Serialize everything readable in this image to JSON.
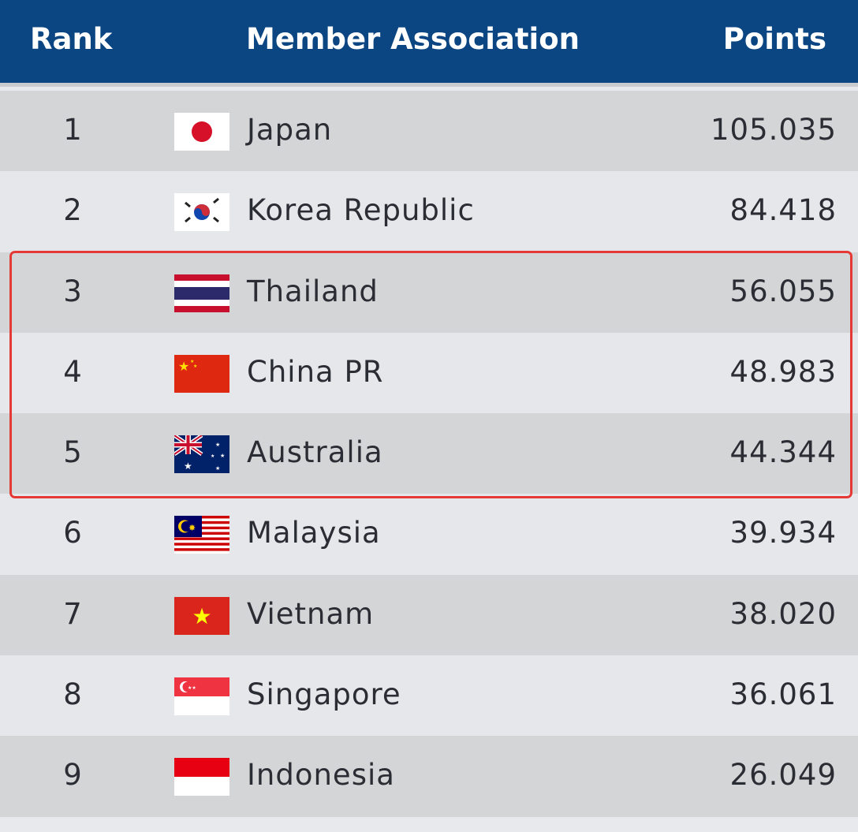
{
  "header": {
    "rank": "Rank",
    "association": "Member Association",
    "points": "Points"
  },
  "colors": {
    "header": "#0b4683",
    "highlight": "#e53935"
  },
  "highlighted_ranks": [
    3,
    4,
    5
  ],
  "rows": [
    {
      "rank": "1",
      "name": "Japan",
      "points": "105.035",
      "flag": "japan-flag-icon"
    },
    {
      "rank": "2",
      "name": "Korea Republic",
      "points": "84.418",
      "flag": "korea-flag-icon"
    },
    {
      "rank": "3",
      "name": "Thailand",
      "points": "56.055",
      "flag": "thailand-flag-icon"
    },
    {
      "rank": "4",
      "name": "China PR",
      "points": "48.983",
      "flag": "china-flag-icon"
    },
    {
      "rank": "5",
      "name": "Australia",
      "points": "44.344",
      "flag": "australia-flag-icon"
    },
    {
      "rank": "6",
      "name": "Malaysia",
      "points": "39.934",
      "flag": "malaysia-flag-icon"
    },
    {
      "rank": "7",
      "name": "Vietnam",
      "points": "38.020",
      "flag": "vietnam-flag-icon"
    },
    {
      "rank": "8",
      "name": "Singapore",
      "points": "36.061",
      "flag": "singapore-flag-icon"
    },
    {
      "rank": "9",
      "name": "Indonesia",
      "points": "26.049",
      "flag": "indonesia-flag-icon"
    }
  ]
}
